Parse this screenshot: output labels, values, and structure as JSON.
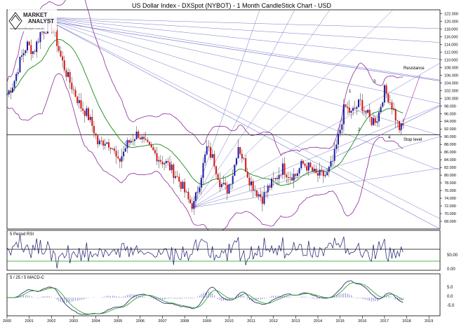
{
  "chart_data": {
    "type": "candlestick",
    "title": "US Dollar Index - DXSpot (NYBOT) - 1 Month CandleStick Chart - USD",
    "x_ticks": [
      "2000",
      "2001",
      "2002",
      "2003",
      "2004",
      "2005",
      "2006",
      "2007",
      "2008",
      "2009",
      "2010",
      "2011",
      "2012",
      "2013",
      "2014",
      "2015",
      "2016",
      "2017",
      "2018",
      "2019"
    ],
    "y_ticks": [
      "122.000",
      "120.000",
      "118.000",
      "116.000",
      "114.000",
      "112.000",
      "110.000",
      "108.000",
      "106.000",
      "104.000",
      "102.000",
      "100.000",
      "98.000",
      "96.000",
      "94.000",
      "92.000",
      "90.000",
      "88.000",
      "86.000",
      "84.000",
      "82.000",
      "80.000",
      "78.000",
      "76.000",
      "74.000",
      "72.000",
      "70.000",
      "68.000"
    ],
    "ylim": [
      66,
      123
    ],
    "xlim": [
      2000,
      2019.5
    ],
    "price_path": [
      [
        2000.0,
        101
      ],
      [
        2000.3,
        104
      ],
      [
        2000.6,
        110
      ],
      [
        2000.9,
        114
      ],
      [
        2001.2,
        112
      ],
      [
        2001.5,
        117
      ],
      [
        2001.9,
        119
      ],
      [
        2002.1,
        118
      ],
      [
        2002.4,
        111
      ],
      [
        2002.7,
        106
      ],
      [
        2003.0,
        102
      ],
      [
        2003.3,
        98
      ],
      [
        2003.6,
        96
      ],
      [
        2003.9,
        92
      ],
      [
        2004.1,
        88
      ],
      [
        2004.4,
        89
      ],
      [
        2004.7,
        88
      ],
      [
        2005.0,
        83
      ],
      [
        2005.4,
        88
      ],
      [
        2005.9,
        91
      ],
      [
        2006.2,
        88
      ],
      [
        2006.6,
        86
      ],
      [
        2006.9,
        84
      ],
      [
        2007.2,
        83
      ],
      [
        2007.6,
        80
      ],
      [
        2007.9,
        77
      ],
      [
        2008.2,
        73
      ],
      [
        2008.4,
        72
      ],
      [
        2008.7,
        79
      ],
      [
        2009.0,
        87
      ],
      [
        2009.3,
        84
      ],
      [
        2009.6,
        78
      ],
      [
        2009.9,
        76
      ],
      [
        2010.2,
        81
      ],
      [
        2010.4,
        88
      ],
      [
        2010.7,
        83
      ],
      [
        2010.9,
        79
      ],
      [
        2011.2,
        76
      ],
      [
        2011.5,
        74
      ],
      [
        2011.8,
        77
      ],
      [
        2012.1,
        79
      ],
      [
        2012.4,
        82
      ],
      [
        2012.7,
        80
      ],
      [
        2013.0,
        80
      ],
      [
        2013.3,
        83
      ],
      [
        2013.6,
        82
      ],
      [
        2013.9,
        80
      ],
      [
        2014.2,
        80
      ],
      [
        2014.4,
        80
      ],
      [
        2014.7,
        84
      ],
      [
        2015.0,
        92
      ],
      [
        2015.2,
        98
      ],
      [
        2015.5,
        96
      ],
      [
        2015.9,
        99
      ],
      [
        2016.2,
        96
      ],
      [
        2016.4,
        94
      ],
      [
        2016.7,
        95
      ],
      [
        2016.9,
        100
      ],
      [
        2017.0,
        102
      ],
      [
        2017.2,
        100
      ],
      [
        2017.4,
        97
      ],
      [
        2017.6,
        93
      ],
      [
        2017.7,
        92
      ],
      [
        2017.9,
        93
      ]
    ],
    "annotations": [
      "1",
      "2",
      "3",
      "4",
      "Resistance",
      "Stop level"
    ],
    "rsi": {
      "title": "5 Period RSI",
      "level_label": "50.00",
      "bottom_label": "0.00"
    },
    "macd": {
      "title": "5 / 25 / 5 MACD-C",
      "ticks": [
        "5.0",
        "0.0",
        "-5.0"
      ]
    }
  }
}
